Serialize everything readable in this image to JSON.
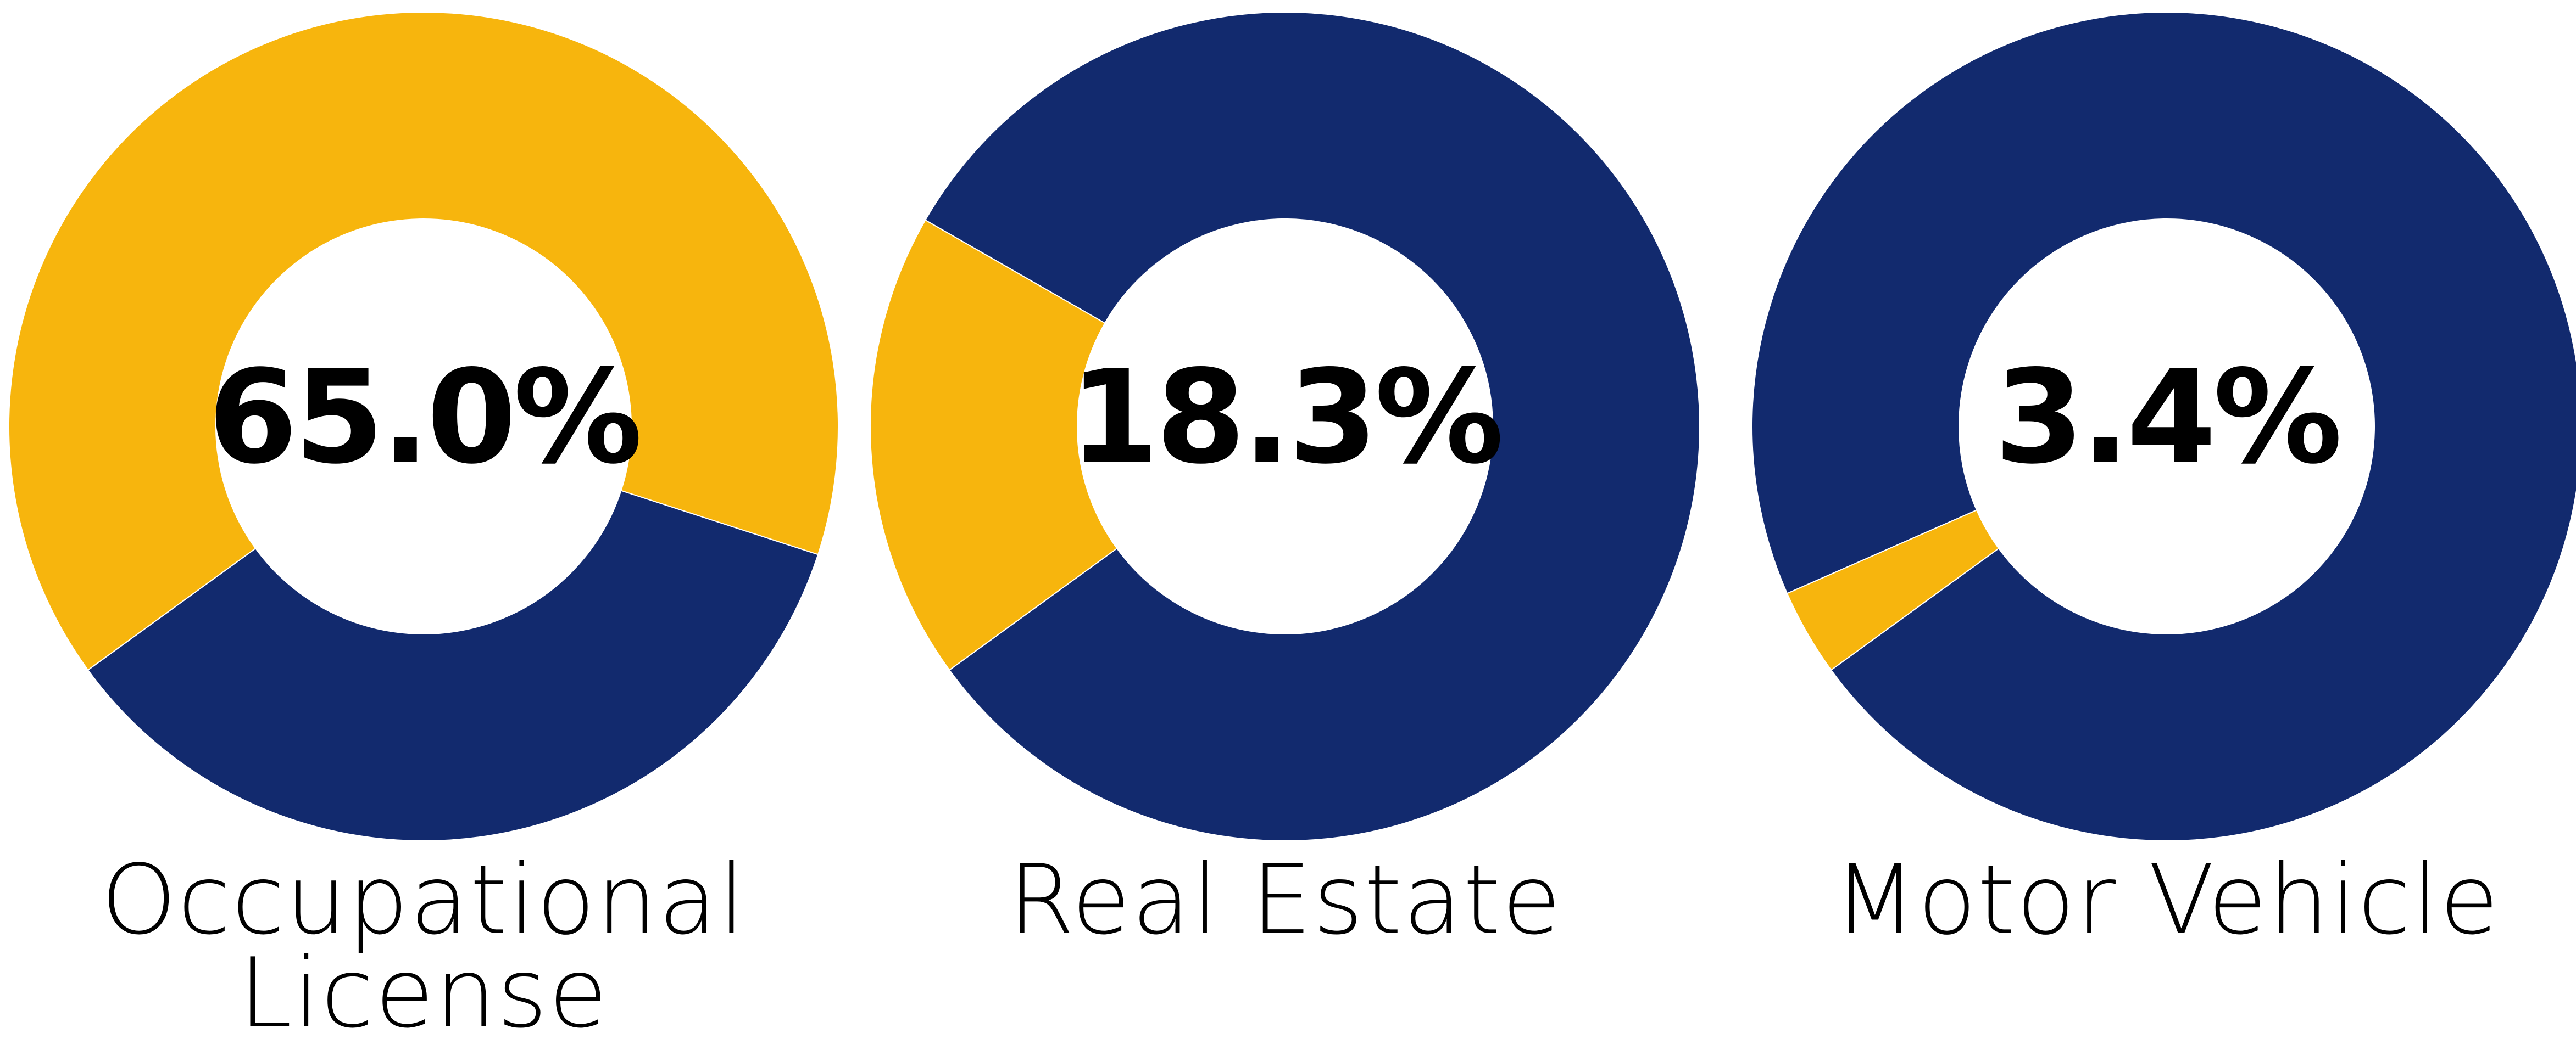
{
  "colors": {
    "highlight": "#F7B50D",
    "remainder": "#122A6E",
    "background": "#FFFFFF"
  },
  "chart_data": [
    {
      "type": "pie",
      "variant": "donut",
      "center_label": "65.0%",
      "category_lines": [
        "Occupational",
        "License"
      ],
      "slices": [
        {
          "color": "#F7B50D",
          "value": 65.0
        },
        {
          "color": "#122A6E",
          "value": 35.0
        }
      ]
    },
    {
      "type": "pie",
      "variant": "donut",
      "center_label": "18.3%",
      "category_lines": [
        "Real Estate"
      ],
      "slices": [
        {
          "color": "#F7B50D",
          "value": 18.3
        },
        {
          "color": "#122A6E",
          "value": 81.7
        }
      ]
    },
    {
      "type": "pie",
      "variant": "donut",
      "center_label": "3.4%",
      "category_lines": [
        "Motor Vehicle"
      ],
      "slices": [
        {
          "color": "#F7B50D",
          "value": 3.4
        },
        {
          "color": "#122A6E",
          "value": 96.6
        }
      ]
    }
  ]
}
